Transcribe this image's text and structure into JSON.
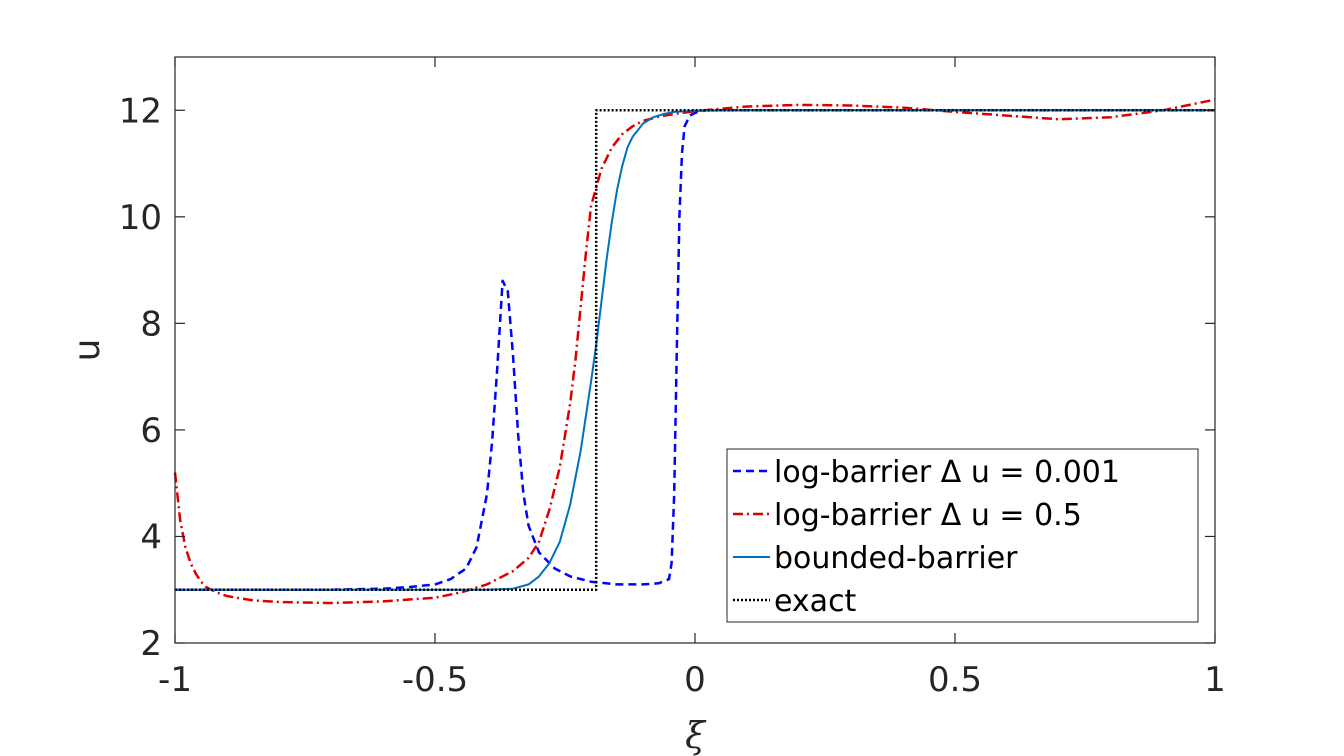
{
  "chart_data": {
    "type": "line",
    "title": "",
    "xlabel": "ξ",
    "ylabel": "u",
    "xlim": [
      -1,
      1
    ],
    "ylim": [
      2,
      13
    ],
    "x_ticks": [
      -1,
      -0.5,
      0,
      0.5,
      1
    ],
    "x_tick_labels": [
      "-1",
      "-0.5",
      "0",
      "0.5",
      "1"
    ],
    "y_ticks": [
      2,
      4,
      6,
      8,
      10,
      12
    ],
    "y_tick_labels": [
      "2",
      "4",
      "6",
      "8",
      "10",
      "12"
    ],
    "grid": false,
    "legend_position": "bottom-right",
    "series": [
      {
        "name": "log-barrier Δ u = 0.001",
        "color": "#0000ff",
        "style": "dashed",
        "x": [
          -1,
          -0.9,
          -0.8,
          -0.7,
          -0.6,
          -0.55,
          -0.5,
          -0.47,
          -0.44,
          -0.42,
          -0.4,
          -0.39,
          -0.38,
          -0.37,
          -0.36,
          -0.35,
          -0.34,
          -0.33,
          -0.32,
          -0.3,
          -0.27,
          -0.24,
          -0.2,
          -0.15,
          -0.1,
          -0.07,
          -0.05,
          -0.045,
          -0.04,
          -0.035,
          -0.03,
          -0.025,
          -0.02,
          -0.01,
          0,
          0.02,
          0.05,
          0.1,
          0.3,
          0.5,
          0.7,
          0.9,
          1
        ],
        "y": [
          3.0,
          3.0,
          3.0,
          3.0,
          3.02,
          3.05,
          3.1,
          3.2,
          3.4,
          3.8,
          4.8,
          5.8,
          7.2,
          8.8,
          8.6,
          7.4,
          5.9,
          4.8,
          4.2,
          3.7,
          3.4,
          3.25,
          3.15,
          3.1,
          3.1,
          3.12,
          3.2,
          3.5,
          4.8,
          7.5,
          10.0,
          11.2,
          11.7,
          11.9,
          11.95,
          12.0,
          12.0,
          12.0,
          12.0,
          12.0,
          12.0,
          12.0,
          12.0
        ]
      },
      {
        "name": "log-barrier Δ u = 0.5",
        "color": "#dd0000",
        "style": "dashdot",
        "x": [
          -1,
          -0.99,
          -0.98,
          -0.97,
          -0.96,
          -0.95,
          -0.94,
          -0.92,
          -0.9,
          -0.85,
          -0.8,
          -0.7,
          -0.6,
          -0.5,
          -0.45,
          -0.4,
          -0.35,
          -0.32,
          -0.3,
          -0.28,
          -0.26,
          -0.24,
          -0.23,
          -0.22,
          -0.21,
          -0.2,
          -0.18,
          -0.16,
          -0.14,
          -0.12,
          -0.1,
          -0.07,
          -0.04,
          0,
          0.05,
          0.1,
          0.2,
          0.3,
          0.4,
          0.5,
          0.6,
          0.7,
          0.8,
          0.9,
          1
        ],
        "y": [
          5.2,
          4.3,
          3.8,
          3.5,
          3.3,
          3.15,
          3.05,
          2.95,
          2.88,
          2.8,
          2.77,
          2.75,
          2.78,
          2.85,
          2.95,
          3.1,
          3.35,
          3.6,
          3.9,
          4.5,
          5.3,
          6.5,
          7.3,
          8.3,
          9.3,
          10.2,
          10.9,
          11.3,
          11.55,
          11.7,
          11.8,
          11.88,
          11.93,
          11.98,
          12.03,
          12.07,
          12.1,
          12.09,
          12.05,
          11.97,
          11.9,
          11.83,
          11.87,
          12.0,
          12.2
        ]
      },
      {
        "name": "bounded-barrier",
        "color": "#0072bd",
        "style": "solid",
        "x": [
          -1,
          -0.9,
          -0.8,
          -0.7,
          -0.6,
          -0.5,
          -0.4,
          -0.35,
          -0.32,
          -0.3,
          -0.28,
          -0.26,
          -0.24,
          -0.22,
          -0.2,
          -0.19,
          -0.18,
          -0.17,
          -0.16,
          -0.15,
          -0.14,
          -0.13,
          -0.12,
          -0.1,
          -0.08,
          -0.06,
          -0.04,
          0,
          0.1,
          0.3,
          0.5,
          0.7,
          0.9,
          1
        ],
        "y": [
          3.0,
          3.0,
          3.0,
          3.0,
          3.0,
          3.0,
          3.0,
          3.02,
          3.1,
          3.25,
          3.5,
          3.9,
          4.6,
          5.6,
          6.9,
          7.6,
          8.4,
          9.2,
          9.9,
          10.5,
          10.95,
          11.3,
          11.5,
          11.75,
          11.87,
          11.93,
          11.97,
          11.99,
          12.0,
          12.0,
          12.0,
          12.0,
          12.0,
          12.0
        ]
      },
      {
        "name": "exact",
        "color": "#000000",
        "style": "dotted",
        "x": [
          -1,
          -0.19,
          -0.19,
          1
        ],
        "y": [
          3.0,
          3.0,
          12.0,
          12.0
        ]
      }
    ]
  }
}
